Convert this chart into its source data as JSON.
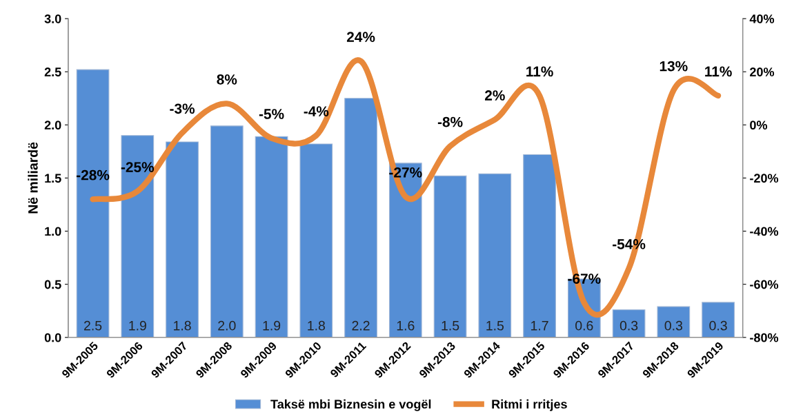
{
  "chart_data": {
    "type": "bar",
    "ylabel": "Në miliardë",
    "categories": [
      "9M-2005",
      "9M-2006",
      "9M-2007",
      "9M-2008",
      "9M-2009",
      "9M-2010",
      "9M-2011",
      "9M-2012",
      "9M-2013",
      "9M-2014",
      "9M-2015",
      "9M-2016",
      "9M-2017",
      "9M-2018",
      "9M-2019"
    ],
    "series": [
      {
        "name": "Taksë mbi Biznesin e vogël",
        "color": "#558ed5",
        "values": [
          2.52,
          1.9,
          1.84,
          1.99,
          1.89,
          1.82,
          2.25,
          1.64,
          1.52,
          1.54,
          1.72,
          0.55,
          0.26,
          0.29,
          0.33
        ],
        "value_labels": [
          "2.5",
          "1.9",
          "1.8",
          "2.0",
          "1.9",
          "1.8",
          "2.2",
          "1.6",
          "1.5",
          "1.5",
          "1.7",
          "0.6",
          "0.3",
          "0.3",
          "0.3"
        ]
      },
      {
        "name": "Ritmi i rritjes",
        "type": "line",
        "axis": "y2",
        "color": "#e8883a",
        "values": [
          -28,
          -25,
          -3,
          8,
          -5,
          -4,
          24,
          -27,
          -8,
          2,
          11,
          -67,
          -54,
          13,
          11
        ],
        "value_labels": [
          "-28%",
          "-25%",
          "-3%",
          "8%",
          "-5%",
          "-4%",
          "24%",
          "-27%",
          "-8%",
          "2%",
          "11%",
          "-67%",
          "-54%",
          "13%",
          "11%"
        ]
      }
    ],
    "ylim": [
      0,
      3
    ],
    "yticks": [
      {
        "value": 0,
        "label": "0.0"
      },
      {
        "value": 0.5,
        "label": "0.5"
      },
      {
        "value": 1,
        "label": "1.0"
      },
      {
        "value": 1.5,
        "label": "1.5"
      },
      {
        "value": 2,
        "label": "2.0"
      },
      {
        "value": 2.5,
        "label": "2.5"
      },
      {
        "value": 3,
        "label": "3.0"
      }
    ],
    "y2lim": [
      -80,
      40
    ],
    "y2ticks": [
      {
        "value": -80,
        "label": "-80%"
      },
      {
        "value": -60,
        "label": "-60%"
      },
      {
        "value": -40,
        "label": "-40%"
      },
      {
        "value": -20,
        "label": "-20%"
      },
      {
        "value": 0,
        "label": "0%"
      },
      {
        "value": 20,
        "label": "20%"
      },
      {
        "value": 40,
        "label": "40%"
      }
    ],
    "grid": false,
    "legend": "bottom",
    "marker": "none",
    "line_style": "solid"
  }
}
